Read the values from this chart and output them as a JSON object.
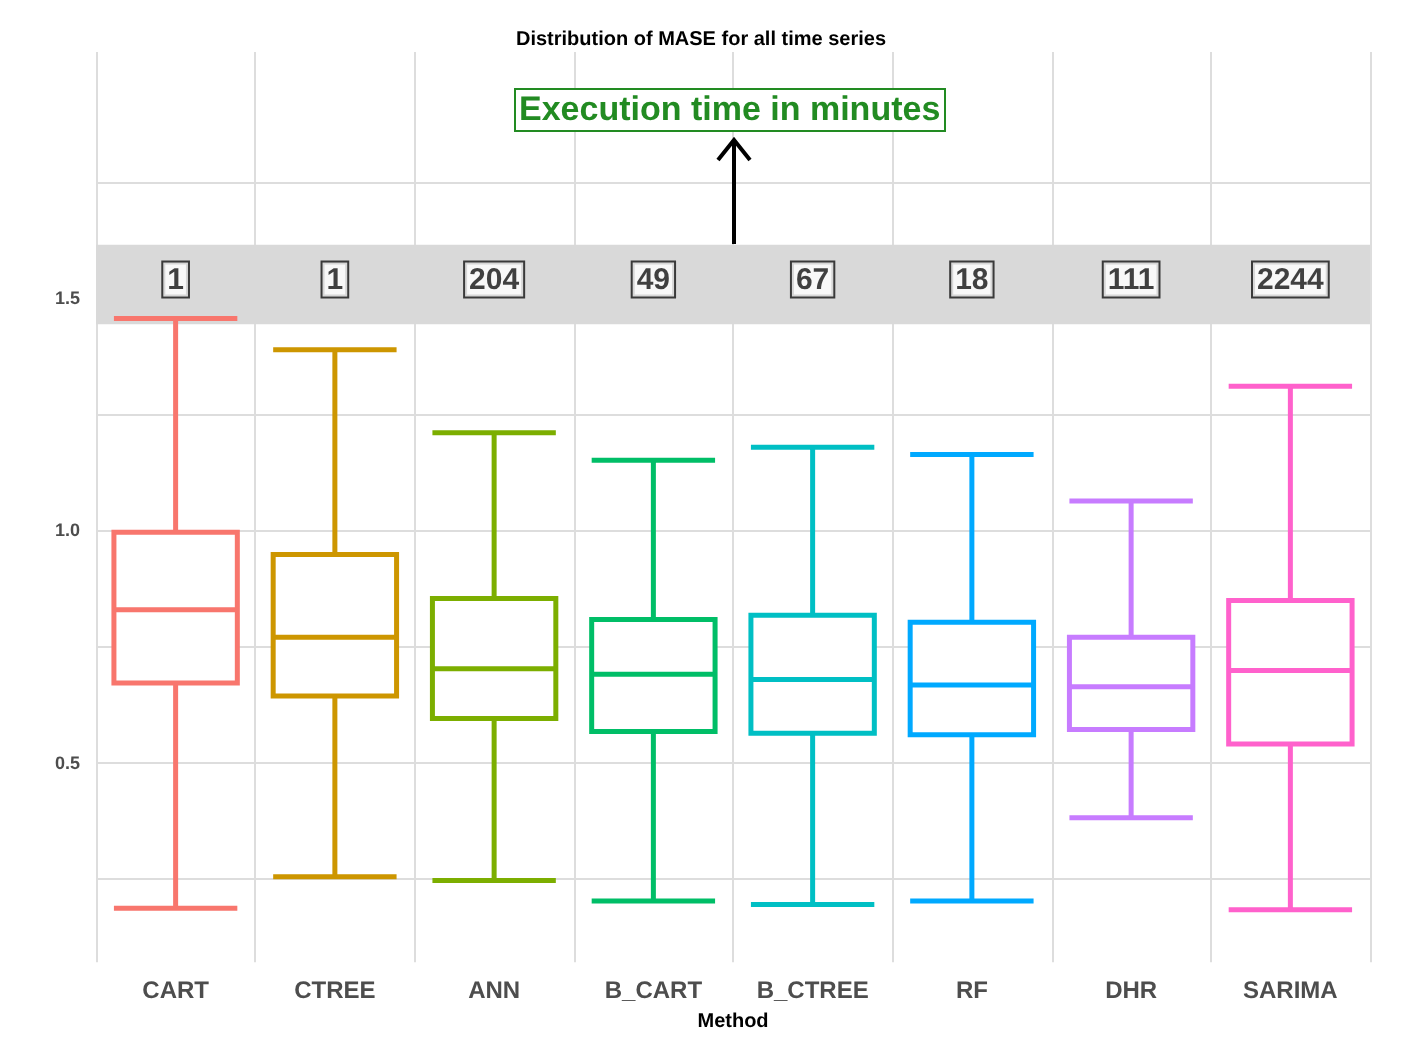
{
  "chart_data": {
    "type": "box",
    "title": "Distribution of MASE for all time series",
    "xlabel": "Method",
    "categories": [
      "CART",
      "CTREE",
      "ANN",
      "B_CART",
      "B_CTREE",
      "RF",
      "DHR",
      "SARIMA"
    ],
    "colors": [
      "#f8766d",
      "#cd9600",
      "#7cae00",
      "#00be67",
      "#00bfc4",
      "#00a9ff",
      "#c77cff",
      "#ff61cc"
    ],
    "boxes": [
      {
        "low": 0.186,
        "q1": 0.671,
        "median": 0.829,
        "q3": 0.996,
        "high": 1.456
      },
      {
        "low": 0.254,
        "q1": 0.643,
        "median": 0.77,
        "q3": 0.948,
        "high": 1.389
      },
      {
        "low": 0.246,
        "q1": 0.595,
        "median": 0.702,
        "q3": 0.853,
        "high": 1.21
      },
      {
        "low": 0.202,
        "q1": 0.567,
        "median": 0.69,
        "q3": 0.808,
        "high": 1.151
      },
      {
        "low": 0.194,
        "q1": 0.563,
        "median": 0.679,
        "q3": 0.817,
        "high": 1.179
      },
      {
        "low": 0.202,
        "q1": 0.56,
        "median": 0.667,
        "q3": 0.802,
        "high": 1.163
      },
      {
        "low": 0.381,
        "q1": 0.571,
        "median": 0.663,
        "q3": 0.77,
        "high": 1.063
      },
      {
        "low": 0.183,
        "q1": 0.54,
        "median": 0.698,
        "q3": 0.849,
        "high": 1.31
      }
    ],
    "ylim": [
      0.07,
      2.03
    ],
    "yticks": [
      {
        "value": 0.25,
        "label": null
      },
      {
        "value": 0.5,
        "label": "0.5"
      },
      {
        "value": 0.75,
        "label": null
      },
      {
        "value": 1,
        "label": "1.0"
      },
      {
        "value": 1.25,
        "label": null
      },
      {
        "value": 1.5,
        "label": "1.5"
      },
      {
        "value": 1.75,
        "label": null
      }
    ],
    "grid": true,
    "legend": false,
    "bands": [
      {
        "axis": "y",
        "from": 1.444,
        "to": 1.615,
        "color": "#d9d9d9"
      }
    ],
    "annotations": [
      {
        "text": "Execution time in minutes",
        "y": 1.615
      },
      {
        "text": "1",
        "x": "CART",
        "y": 1.54
      },
      {
        "text": "1",
        "x": "CTREE",
        "y": 1.54
      },
      {
        "text": "204",
        "x": "ANN",
        "y": 1.54
      },
      {
        "text": "49",
        "x": "B_CART",
        "y": 1.54
      },
      {
        "text": "67",
        "x": "B_CTREE",
        "y": 1.54
      },
      {
        "text": "18",
        "x": "RF",
        "y": 1.54
      },
      {
        "text": "111",
        "x": "DHR",
        "y": 1.54
      },
      {
        "text": "2244",
        "x": "SARIMA",
        "y": 1.54
      }
    ]
  }
}
